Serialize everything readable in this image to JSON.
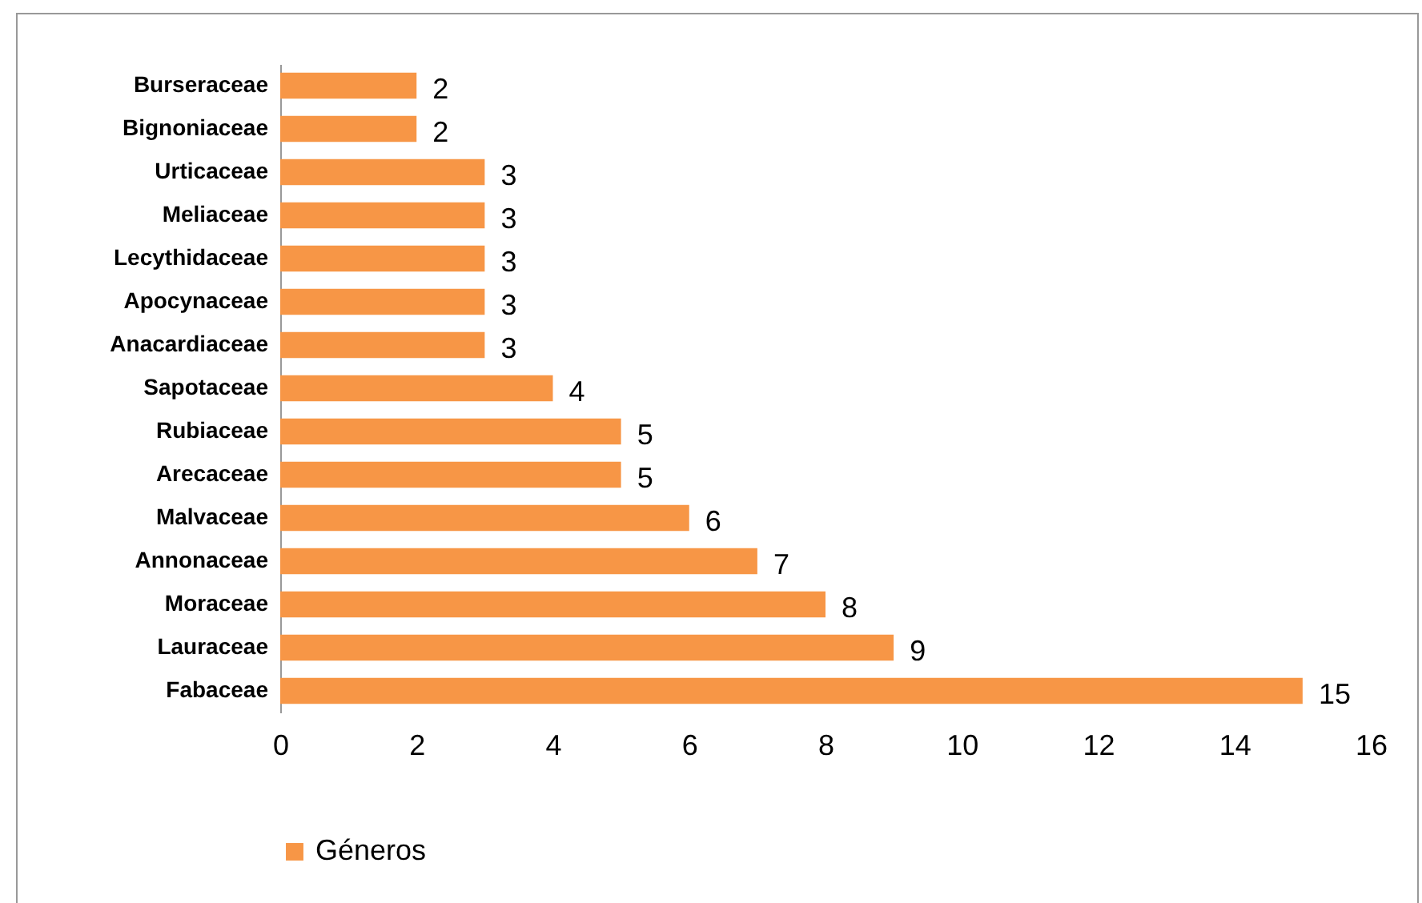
{
  "chart_data": {
    "type": "bar",
    "orientation": "horizontal",
    "categories": [
      "Burseraceae",
      "Bignoniaceae",
      "Urticaceae",
      "Meliaceae",
      "Lecythidaceae",
      "Apocynaceae",
      "Anacardiaceae",
      "Sapotaceae",
      "Rubiaceae",
      "Arecaceae",
      "Malvaceae",
      "Annonaceae",
      "Moraceae",
      "Lauraceae",
      "Fabaceae"
    ],
    "series": [
      {
        "name": "Géneros",
        "color": "#f79646",
        "values": [
          2,
          2,
          3,
          3,
          3,
          3,
          3,
          4,
          5,
          5,
          6,
          7,
          8,
          9,
          15
        ]
      }
    ],
    "xlim": [
      0,
      16
    ],
    "xticks": [
      0,
      2,
      4,
      6,
      8,
      10,
      12,
      14,
      16
    ],
    "data_labels": true,
    "legend": "bottom"
  }
}
